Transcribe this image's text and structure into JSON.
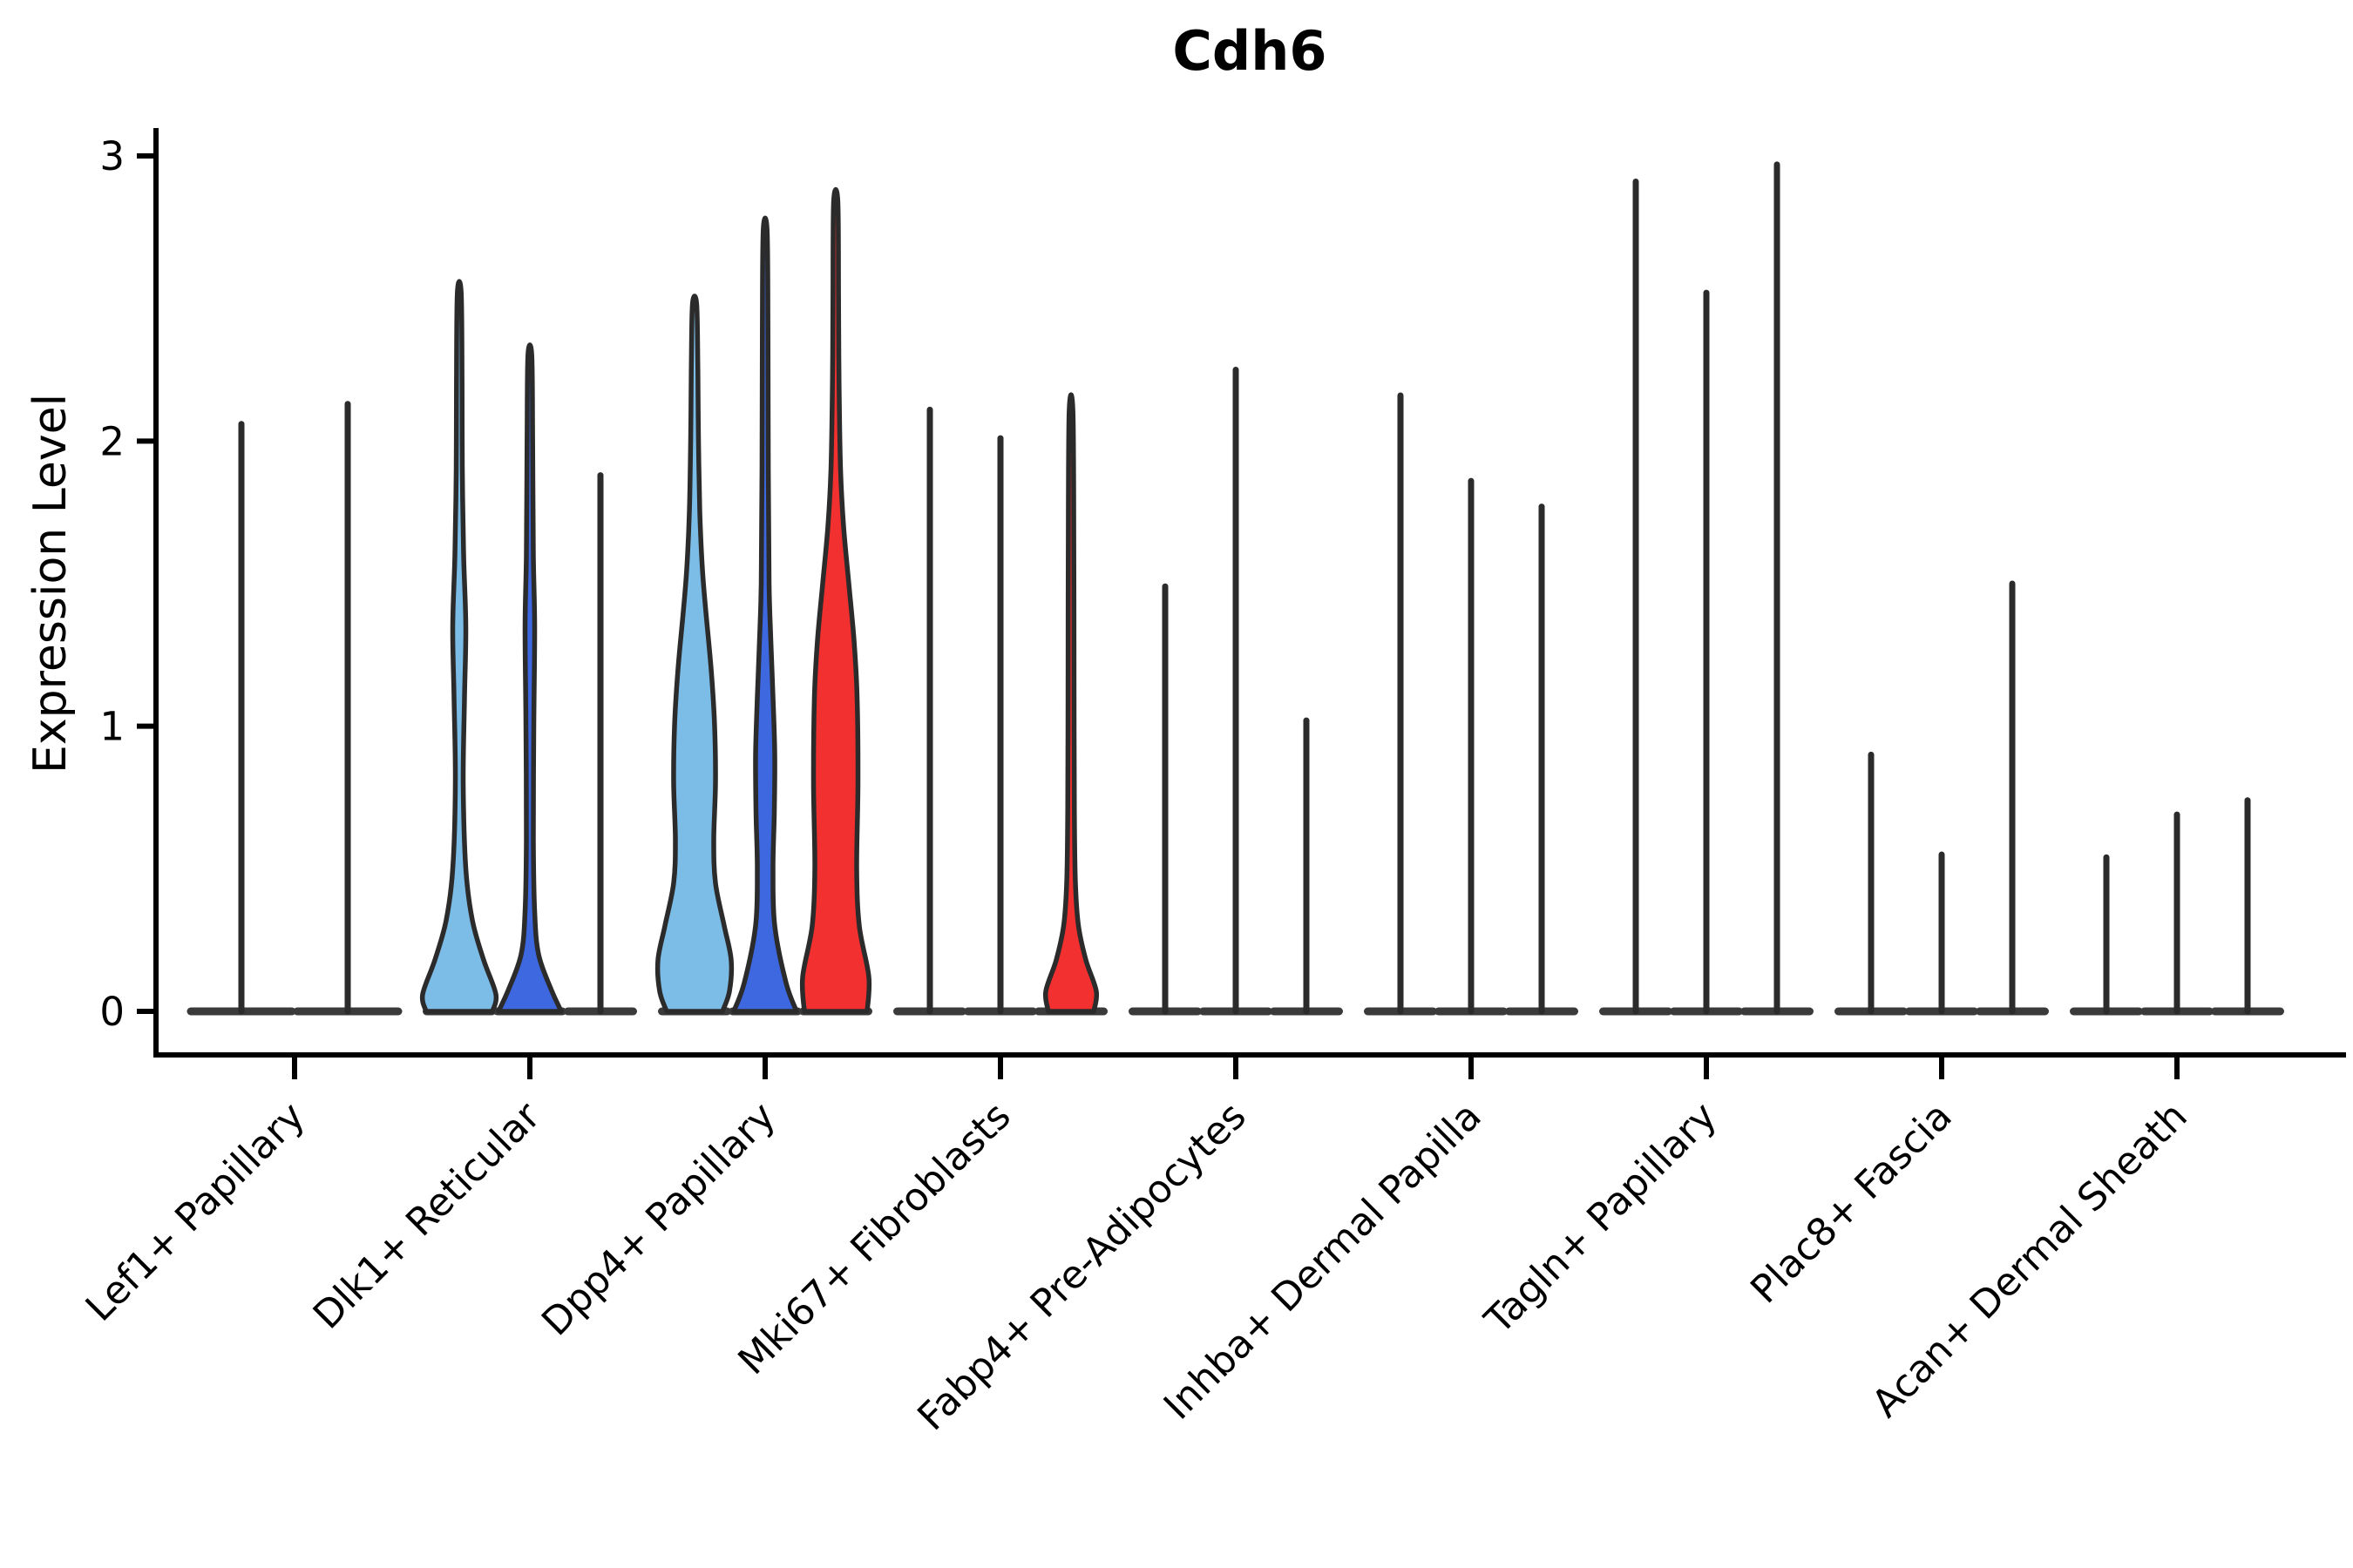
{
  "chart_data": {
    "type": "violin",
    "title": "Cdh6",
    "ylabel": "Expression Level",
    "yticks": [
      0,
      1,
      2,
      3
    ],
    "ylim": [
      0,
      3.05
    ],
    "legend": "none",
    "grid": false,
    "palette": {
      "light_blue": "#7CBDE8",
      "dark_blue": "#3D68E0",
      "red": "#F23030",
      "spike": "#2B2B2B",
      "base_bar": "#3A3A3A",
      "axis": "#000000"
    },
    "categories": [
      "Lef1+ Papillary",
      "Dlk1+ Reticular",
      "Dpp4+ Papillary",
      "Mki67+ Fibroblasts",
      "Fabp4+ Pre-Adipocytes",
      "Inhba+ Dermal Papilla",
      "Tagln+ Papillary",
      "Plac8+ Fascia",
      "Acan+ Dermal Sheath"
    ],
    "groups": [
      {
        "category": "Lef1+ Papillary",
        "violins": [
          {
            "offset": -61,
            "width": 122,
            "max": 2.06,
            "fill": null,
            "profile": null
          },
          {
            "offset": 61,
            "width": 122,
            "max": 2.13,
            "fill": null,
            "profile": null
          }
        ]
      },
      {
        "category": "Dlk1+ Reticular",
        "violins": [
          {
            "offset": -81,
            "width": 81,
            "max": 2.52,
            "fill": "light_blue",
            "profile": [
              [
                0,
                38
              ],
              [
                0.06,
                42
              ],
              [
                0.18,
                28
              ],
              [
                0.32,
                15
              ],
              [
                0.5,
                7.5
              ],
              [
                0.8,
                4.5
              ],
              [
                1.1,
                6
              ],
              [
                1.35,
                7.5
              ],
              [
                1.6,
                5
              ],
              [
                1.9,
                3.5
              ],
              [
                2.2,
                3.2
              ],
              [
                2.52,
                2.2
              ]
            ]
          },
          {
            "offset": 0,
            "width": 81,
            "max": 2.3,
            "fill": "dark_blue",
            "profile": [
              [
                0,
                36
              ],
              [
                0.08,
                24
              ],
              [
                0.2,
                10
              ],
              [
                0.35,
                5.5
              ],
              [
                0.6,
                4
              ],
              [
                1.0,
                4.5
              ],
              [
                1.35,
                5.5
              ],
              [
                1.6,
                4
              ],
              [
                2.0,
                3.2
              ],
              [
                2.3,
                2.2
              ]
            ]
          },
          {
            "offset": 81,
            "width": 81,
            "max": 1.88,
            "fill": null,
            "profile": null
          }
        ]
      },
      {
        "category": "Dpp4+ Papillary",
        "violins": [
          {
            "offset": -81,
            "width": 81,
            "max": 2.48,
            "fill": "light_blue",
            "profile": [
              [
                0,
                32
              ],
              [
                0.07,
                40
              ],
              [
                0.18,
                42
              ],
              [
                0.3,
                34
              ],
              [
                0.45,
                24
              ],
              [
                0.6,
                22
              ],
              [
                0.8,
                24
              ],
              [
                1.0,
                23
              ],
              [
                1.2,
                19
              ],
              [
                1.4,
                13
              ],
              [
                1.55,
                9
              ],
              [
                1.75,
                6
              ],
              [
                2.0,
                4.5
              ],
              [
                2.25,
                3.8
              ],
              [
                2.48,
                2.4
              ]
            ]
          },
          {
            "offset": 0,
            "width": 81,
            "max": 2.74,
            "fill": "dark_blue",
            "profile": [
              [
                0,
                36
              ],
              [
                0.1,
                24
              ],
              [
                0.3,
                11
              ],
              [
                0.5,
                9
              ],
              [
                0.7,
                10.5
              ],
              [
                0.9,
                11
              ],
              [
                1.1,
                9
              ],
              [
                1.3,
                6.5
              ],
              [
                1.5,
                4.5
              ],
              [
                1.9,
                3.6
              ],
              [
                2.4,
                3.2
              ],
              [
                2.74,
                2.2
              ]
            ]
          },
          {
            "offset": 81,
            "width": 81,
            "max": 2.84,
            "fill": "red",
            "profile": [
              [
                0,
                36
              ],
              [
                0.12,
                38
              ],
              [
                0.3,
                27
              ],
              [
                0.5,
                24
              ],
              [
                0.8,
                25.5
              ],
              [
                1.1,
                24.5
              ],
              [
                1.3,
                21
              ],
              [
                1.5,
                15
              ],
              [
                1.7,
                9
              ],
              [
                1.9,
                5.5
              ],
              [
                2.2,
                3.8
              ],
              [
                2.5,
                3.2
              ],
              [
                2.84,
                2.4
              ]
            ]
          }
        ]
      },
      {
        "category": "Mki67+ Fibroblasts",
        "violins": [
          {
            "offset": -81,
            "width": 81,
            "max": 2.11,
            "fill": null,
            "profile": null
          },
          {
            "offset": 0,
            "width": 81,
            "max": 2.01,
            "fill": null,
            "profile": null
          },
          {
            "offset": 81,
            "width": 81,
            "max": 2.1,
            "fill": "red",
            "profile": [
              [
                0,
                26
              ],
              [
                0.07,
                29
              ],
              [
                0.18,
                17
              ],
              [
                0.3,
                8.5
              ],
              [
                0.45,
                5
              ],
              [
                0.7,
                3.8
              ],
              [
                1.2,
                3.4
              ],
              [
                1.6,
                3.2
              ],
              [
                2.1,
                2.2
              ]
            ]
          }
        ]
      },
      {
        "category": "Fabp4+ Pre-Adipocytes",
        "violins": [
          {
            "offset": -81,
            "width": 81,
            "max": 1.49,
            "fill": null,
            "profile": null
          },
          {
            "offset": 0,
            "width": 81,
            "max": 2.25,
            "fill": null,
            "profile": null
          },
          {
            "offset": 81,
            "width": 81,
            "max": 1.02,
            "fill": null,
            "profile": null
          }
        ]
      },
      {
        "category": "Inhba+ Dermal Papilla",
        "violins": [
          {
            "offset": -81,
            "width": 81,
            "max": 2.16,
            "fill": null,
            "profile": null
          },
          {
            "offset": 0,
            "width": 81,
            "max": 1.86,
            "fill": null,
            "profile": null
          },
          {
            "offset": 81,
            "width": 81,
            "max": 1.77,
            "fill": null,
            "profile": null
          }
        ]
      },
      {
        "category": "Tagln+ Papillary",
        "violins": [
          {
            "offset": -81,
            "width": 81,
            "max": 2.91,
            "fill": null,
            "profile": null
          },
          {
            "offset": 0,
            "width": 81,
            "max": 2.52,
            "fill": null,
            "profile": null
          },
          {
            "offset": 81,
            "width": 81,
            "max": 2.97,
            "fill": null,
            "profile": null
          }
        ]
      },
      {
        "category": "Plac8+ Fascia",
        "violins": [
          {
            "offset": -81,
            "width": 81,
            "max": 0.9,
            "fill": null,
            "profile": null
          },
          {
            "offset": 0,
            "width": 81,
            "max": 0.55,
            "fill": null,
            "profile": null
          },
          {
            "offset": 81,
            "width": 81,
            "max": 1.5,
            "fill": null,
            "profile": null
          }
        ]
      },
      {
        "category": "Acan+ Dermal Sheath",
        "violins": [
          {
            "offset": -81,
            "width": 81,
            "max": 0.54,
            "fill": null,
            "profile": null
          },
          {
            "offset": 0,
            "width": 81,
            "max": 0.69,
            "fill": null,
            "profile": null
          },
          {
            "offset": 81,
            "width": 81,
            "max": 0.74,
            "fill": null,
            "profile": null
          }
        ]
      }
    ]
  }
}
